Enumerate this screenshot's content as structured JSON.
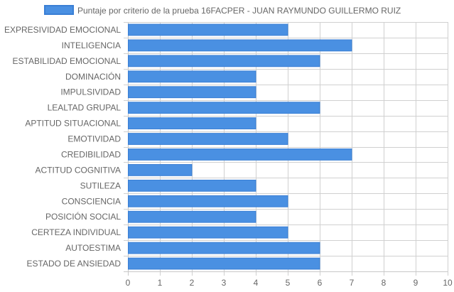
{
  "chart_data": {
    "type": "bar",
    "orientation": "horizontal",
    "categories": [
      "EXPRESIVIDAD EMOCIONAL",
      "INTELIGENCIA",
      "ESTABILIDAD EMOCIONAL",
      "DOMINACIÓN",
      "IMPULSIVIDAD",
      "LEALTAD GRUPAL",
      "APTITUD SITUACIONAL",
      "EMOTIVIDAD",
      "CREDIBILIDAD",
      "ACTITUD COGNITIVA",
      "SUTILEZA",
      "CONSCIENCIA",
      "POSICIÓN SOCIAL",
      "CERTEZA INDIVIDUAL",
      "AUTOESTIMA",
      "ESTADO DE ANSIEDAD"
    ],
    "series": [
      {
        "name": "Puntaje por criterio de la prueba 16FACPER - JUAN RAYMUNDO GUILLERMO RUIZ",
        "values": [
          5,
          7,
          6,
          4,
          4,
          6,
          4,
          5,
          7,
          2,
          4,
          5,
          4,
          5,
          6,
          6
        ],
        "color": "#4a90e2",
        "border_color": "#3a7fd5"
      }
    ],
    "xlim": [
      0,
      10
    ],
    "x_ticks": [
      "0",
      "1",
      "2",
      "3",
      "4",
      "5",
      "6",
      "7",
      "8",
      "9",
      "10"
    ],
    "grid": true,
    "legend_position": "top"
  }
}
